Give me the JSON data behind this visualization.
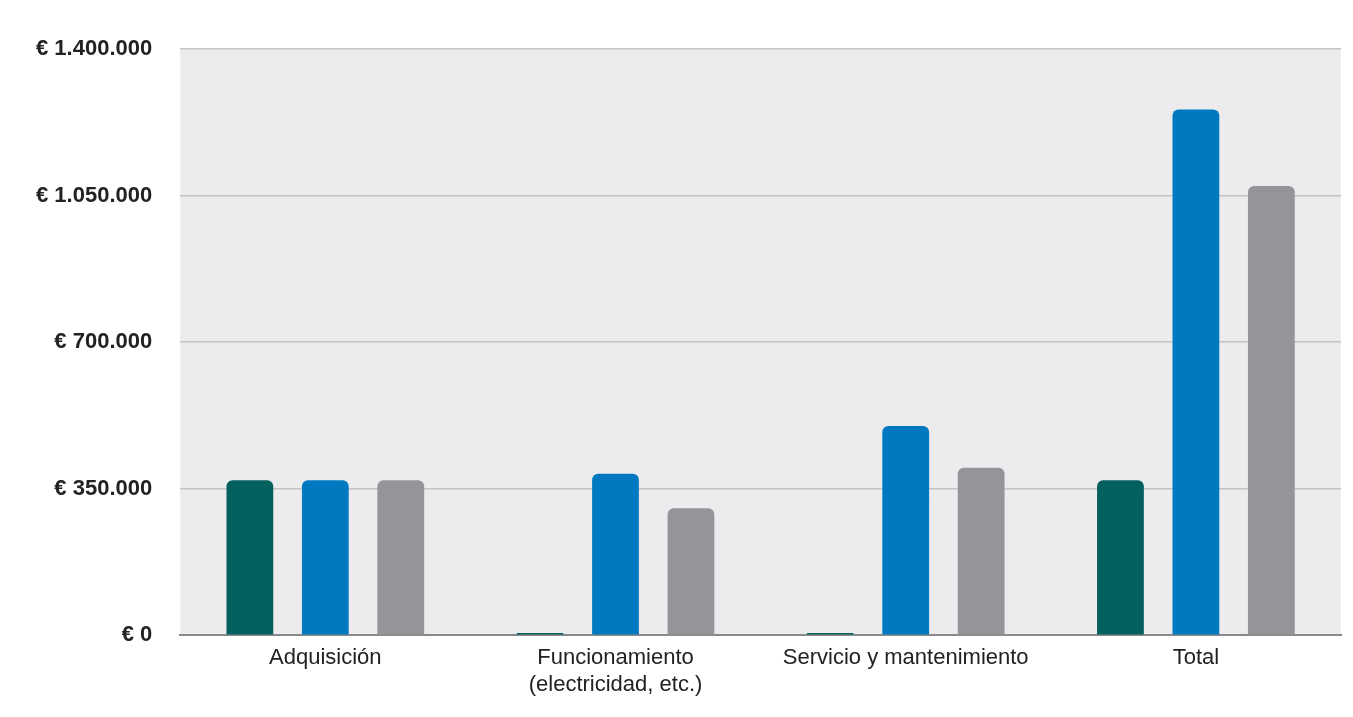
{
  "chart_data": {
    "type": "bar",
    "categories": [
      "Adquisición",
      "Funcionamiento\n(electricidad, etc.)",
      "Servicio y mantenimiento",
      "Total"
    ],
    "series": [
      {
        "color": "#04605f",
        "values": [
          370000,
          5000,
          5000,
          370000
        ]
      },
      {
        "color": "#0079c1",
        "values": [
          370000,
          386000,
          500000,
          1256000
        ]
      },
      {
        "color": "#939598",
        "values": [
          370000,
          303000,
          400000,
          1073000
        ]
      }
    ],
    "ylim": [
      0,
      1400000
    ],
    "yticks": [
      {
        "value": 0,
        "label": "€ 0"
      },
      {
        "value": 350000,
        "label": "€ 350.000"
      },
      {
        "value": 700000,
        "label": "€ 700.000"
      },
      {
        "value": 1050000,
        "label": "€ 1.050.000"
      },
      {
        "value": 1400000,
        "label": "€ 1.400.000"
      }
    ],
    "grid": "y",
    "legend": false
  }
}
